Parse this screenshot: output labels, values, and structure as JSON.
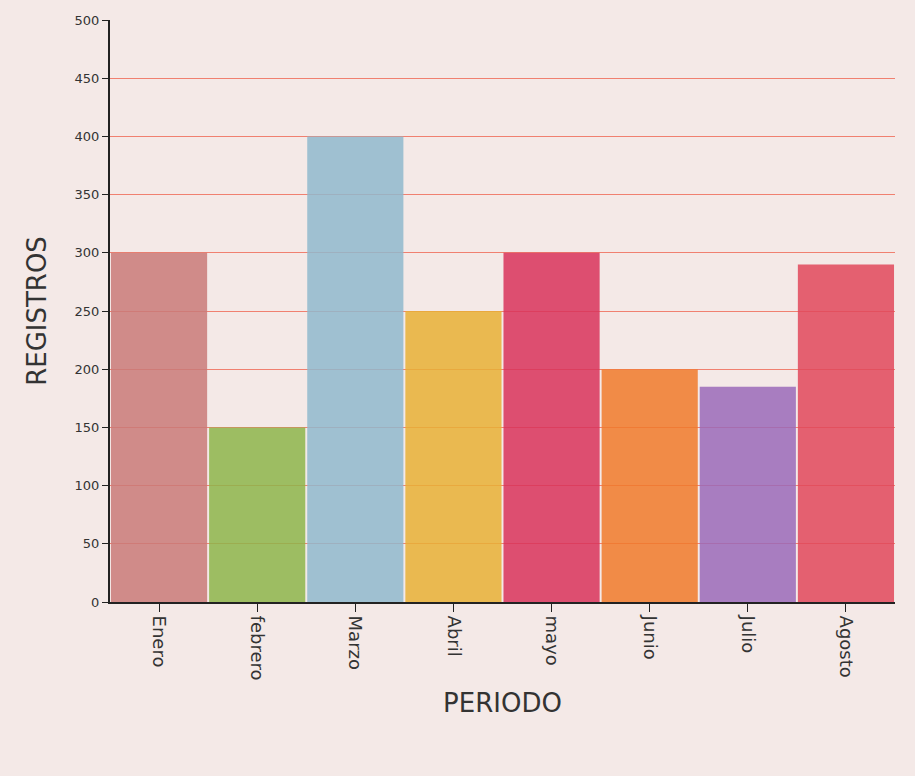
{
  "chart_data": {
    "type": "bar",
    "x_label": "PERIODO",
    "y_label": "REGISTROS",
    "categories": [
      "Enero",
      "febrero",
      "Marzo",
      "Abril",
      "mayo",
      "Junio",
      "Julio",
      "Agosto"
    ],
    "values": [
      300,
      150,
      400,
      250,
      300,
      200,
      185,
      290
    ],
    "colors": [
      "#c97a78",
      "#8db54a",
      "#8fb8cc",
      "#e8b035",
      "#d8335a",
      "#f07a2a",
      "#9a6ab8",
      "#e0485a"
    ],
    "ylim": [
      0,
      500
    ],
    "yticks": [
      0,
      50,
      100,
      150,
      200,
      250,
      300,
      350,
      400,
      450,
      500
    ],
    "grid": true
  }
}
